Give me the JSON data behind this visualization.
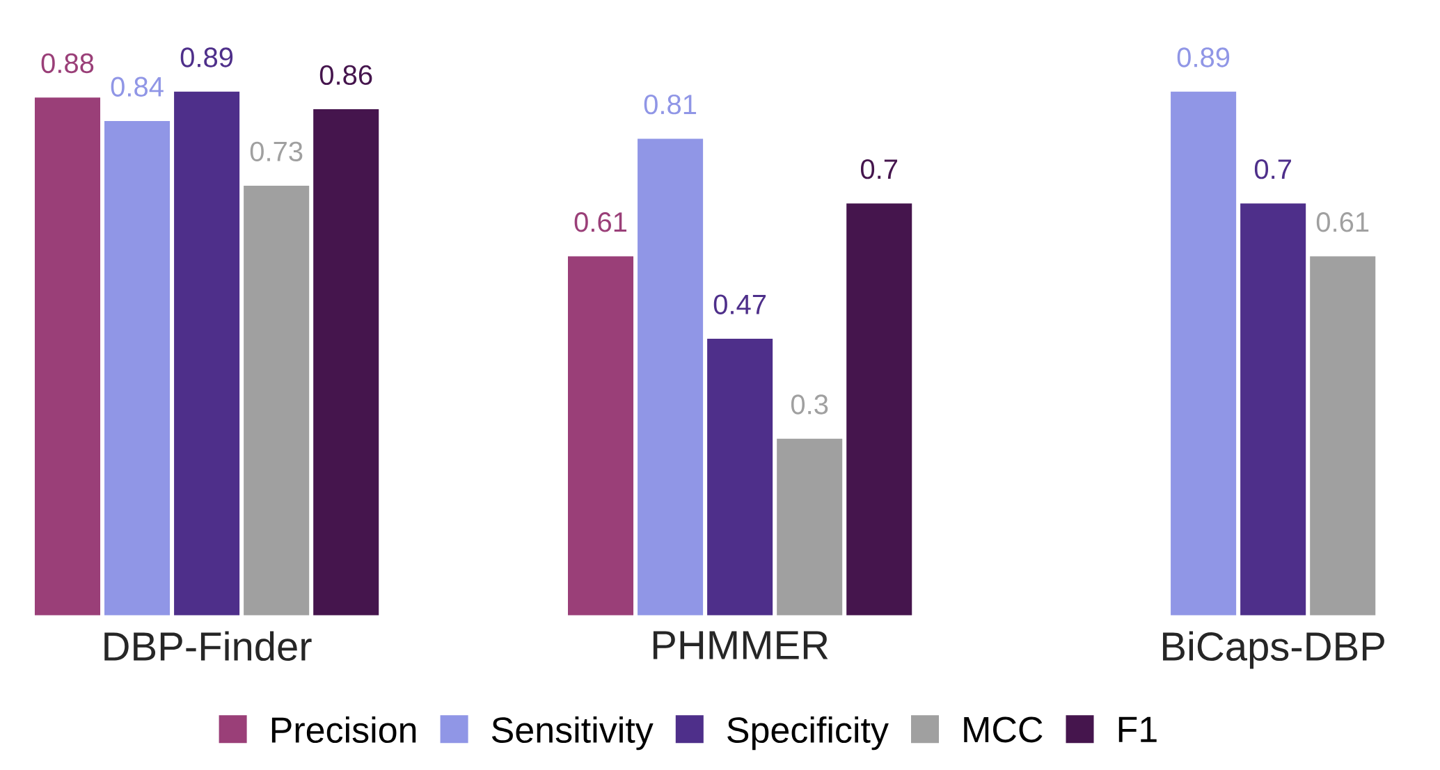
{
  "chart_data": {
    "type": "bar",
    "categories": [
      "DBP-Finder",
      "PHMMER",
      "BiCaps-DBP"
    ],
    "data_labels": true,
    "legend": "bottom",
    "series": [
      {
        "name": "Precision",
        "color": "#9a3f78",
        "values": [
          0.88,
          0.61,
          null
        ]
      },
      {
        "name": "Sensitivity",
        "color": "#9096e6",
        "values": [
          0.84,
          0.81,
          0.89
        ]
      },
      {
        "name": "Specificity",
        "color": "#4e2f8a",
        "values": [
          0.89,
          0.47,
          0.7
        ]
      },
      {
        "name": "MCC",
        "color": "#a0a0a0",
        "values": [
          0.73,
          0.3,
          0.61
        ]
      },
      {
        "name": "F1",
        "color": "#45154d",
        "values": [
          0.86,
          0.7,
          null
        ]
      }
    ]
  }
}
